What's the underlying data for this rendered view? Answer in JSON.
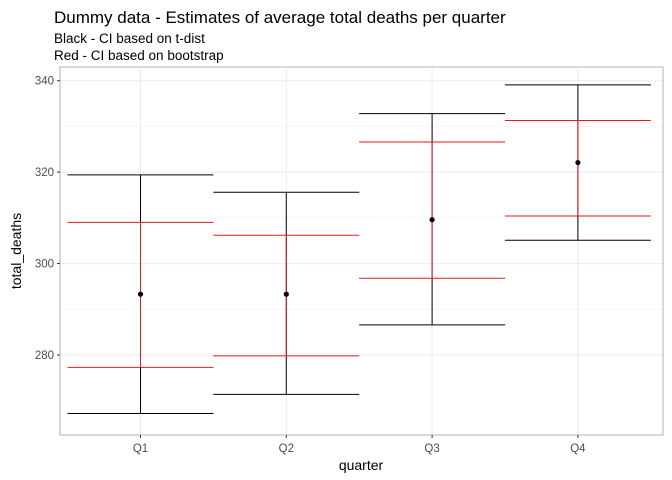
{
  "chart_data": {
    "type": "errorbar",
    "title": "Dummy data - Estimates of average total deaths per quarter",
    "subtitle_lines": [
      "Black - CI based on t-dist",
      "Red - CI based on bootstrap"
    ],
    "xlabel": "quarter",
    "ylabel": "total_deaths",
    "categories": [
      "Q1",
      "Q2",
      "Q3",
      "Q4"
    ],
    "ylim": [
      262.5,
      343
    ],
    "yticks": [
      280,
      300,
      320,
      340
    ],
    "grid": true,
    "point_estimates": [
      293.3,
      293.3,
      309.6,
      322.1
    ],
    "series": [
      {
        "name": "Black - CI based on t-dist",
        "color": "#000000",
        "lower": [
          267.2,
          271.4,
          286.6,
          305.1
        ],
        "upper": [
          319.4,
          315.6,
          332.8,
          339.1
        ]
      },
      {
        "name": "Red - CI based on bootstrap",
        "color": "#e31a1c",
        "lower": [
          277.3,
          279.8,
          296.8,
          310.4
        ],
        "upper": [
          309.0,
          306.2,
          326.6,
          331.3
        ]
      }
    ]
  }
}
